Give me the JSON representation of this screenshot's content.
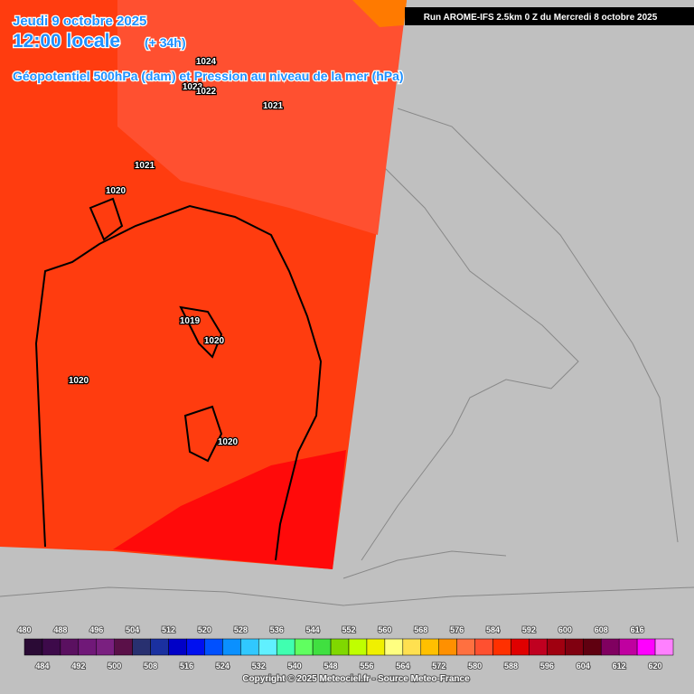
{
  "header": {
    "date": "Jeudi 9 octobre 2025",
    "time": "12:00 locale",
    "lead": "(+ 34h)",
    "subtitle": "Géopotentiel 500hPa (dam) et Pression au niveau de la mer (hPa)",
    "run": "Run AROME-IFS 2.5km 0 Z du Mercredi 8 octobre 2025"
  },
  "contour_labels": [
    "1024",
    "1023",
    "1022",
    "1021",
    "1021",
    "1020",
    "1019",
    "1020",
    "1020",
    "1020"
  ],
  "colorbar": {
    "values": [
      480,
      484,
      488,
      492,
      496,
      500,
      504,
      508,
      512,
      516,
      520,
      524,
      528,
      532,
      536,
      540,
      544,
      548,
      552,
      556,
      560,
      564,
      568,
      572,
      576,
      580,
      584,
      588,
      592,
      596,
      600,
      604,
      608,
      612,
      616,
      620
    ],
    "colors": [
      "#2a0a35",
      "#3d0a4a",
      "#5a1060",
      "#701878",
      "#7a2080",
      "#5a1048",
      "#283070",
      "#1a30a0",
      "#0000c8",
      "#0010f0",
      "#0050ff",
      "#0a90ff",
      "#30c8ff",
      "#60f0ff",
      "#40ffb0",
      "#60ff60",
      "#40e040",
      "#80d800",
      "#c0ff00",
      "#f0f000",
      "#ffff80",
      "#ffe050",
      "#ffc000",
      "#ff9000",
      "#ff7040",
      "#ff5030",
      "#ff3000",
      "#e00000",
      "#c00020",
      "#a00010",
      "#800010",
      "#600010",
      "#800060",
      "#c000a0",
      "#ff00ff",
      "#ff80ff"
    ]
  },
  "footer": "Copyright © 2025 Meteociel.fr - Source Meteo-France"
}
